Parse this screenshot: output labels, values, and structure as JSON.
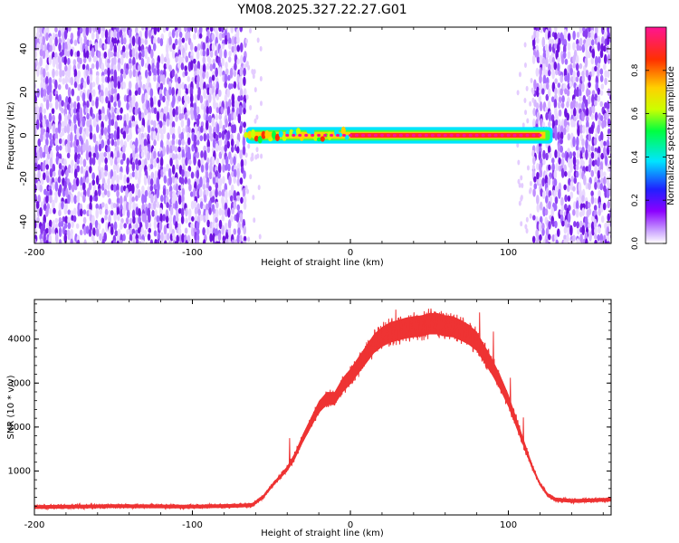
{
  "title": "YM08.2025.327.22.27.G01",
  "chart_data": [
    {
      "type": "heatmap",
      "xlabel": "Height of straight line (km)",
      "ylabel": "Frequency (Hz)",
      "xlim": [
        -200,
        165
      ],
      "ylim": [
        -50,
        50
      ],
      "xticks": [
        -200,
        -100,
        0,
        100
      ],
      "yticks": [
        -40,
        -20,
        0,
        20,
        40
      ],
      "noise_regions_km": [
        [
          -200,
          -66
        ],
        [
          116,
          165
        ]
      ],
      "signal_band": {
        "x_start": -66,
        "x_end": 128,
        "freq_center": 0,
        "freq_halfwidth": 2
      },
      "colorbar": {
        "label": "Normalized spectral amplitude",
        "range": [
          0.0,
          1.0
        ],
        "ticks": [
          0.0,
          0.2,
          0.4,
          0.6,
          0.8
        ],
        "colors": [
          "#ffffff",
          "#8b00ff",
          "#0000ff",
          "#00ffff",
          "#00ff00",
          "#ffff00",
          "#ff8000",
          "#ff0000",
          "#ff1493"
        ]
      }
    },
    {
      "type": "line",
      "xlabel": "Height of straight line (km)",
      "ylabel": "SNR (10 * v/v)",
      "xlim": [
        -200,
        165
      ],
      "ylim": [
        0,
        4900
      ],
      "xticks": [
        -200,
        -100,
        0,
        100
      ],
      "yticks": [
        1000,
        2000,
        3000,
        4000
      ],
      "series": [
        {
          "name": "SNR",
          "color": "#ee3333",
          "x": [
            -200,
            -150,
            -100,
            -70,
            -62,
            -55,
            -50,
            -45,
            -40,
            -35,
            -30,
            -25,
            -20,
            -15,
            -10,
            -5,
            0,
            5,
            10,
            15,
            20,
            25,
            30,
            35,
            40,
            45,
            50,
            55,
            60,
            65,
            70,
            75,
            80,
            85,
            90,
            95,
            100,
            105,
            110,
            115,
            120,
            125,
            130,
            140,
            150,
            165
          ],
          "y": [
            180,
            200,
            190,
            210,
            230,
            420,
            650,
            850,
            1050,
            1350,
            1750,
            2100,
            2450,
            2650,
            2650,
            2950,
            3150,
            3400,
            3650,
            3900,
            4050,
            4150,
            4200,
            4250,
            4280,
            4300,
            4350,
            4350,
            4300,
            4280,
            4200,
            4100,
            3950,
            3650,
            3350,
            3000,
            2600,
            2100,
            1600,
            1100,
            700,
            450,
            350,
            320,
            330,
            350
          ]
        }
      ]
    }
  ]
}
